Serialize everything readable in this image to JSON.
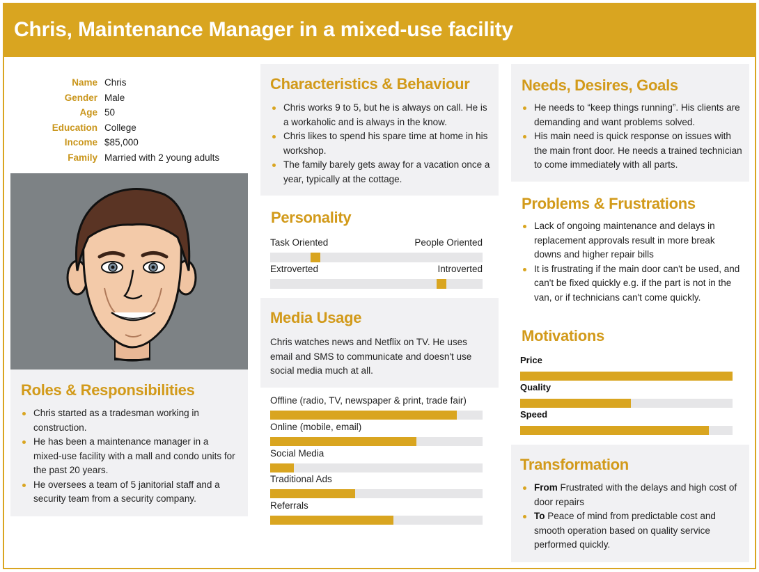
{
  "title": "Chris, Maintenance Manager in a mixed-use facility",
  "profile": [
    {
      "key": "Name",
      "value": "Chris"
    },
    {
      "key": "Gender",
      "value": "Male"
    },
    {
      "key": "Age",
      "value": "50"
    },
    {
      "key": "Education",
      "value": "College"
    },
    {
      "key": "Income",
      "value": "$85,000"
    },
    {
      "key": "Family",
      "value": "Married with 2 young adults"
    }
  ],
  "roles": {
    "title": "Roles & Responsibilities",
    "items": [
      "Chris started as a tradesman working in construction.",
      "He has been a maintenance manager in a mixed-use facility with a mall and condo units for the past 20 years.",
      "He oversees a team of 5 janitorial staff and a security team from a security company."
    ]
  },
  "characteristics": {
    "title": "Characteristics & Behaviour",
    "items": [
      "Chris works 9 to 5, but he is always on call. He is a workaholic and is always in the know.",
      "Chris likes to spend his spare time at home in his workshop.",
      "The family barely gets away for a vacation once a year, typically at the cottage."
    ]
  },
  "personality": {
    "title": "Personality",
    "scales": [
      {
        "left": "Task Oriented",
        "right": "People Oriented",
        "value": 0.2
      },
      {
        "left": "Extroverted",
        "right": "Introverted",
        "value": 0.82
      }
    ]
  },
  "media": {
    "title": "Media Usage",
    "text": "Chris watches news and Netflix on TV. He uses email and SMS to communicate and doesn't use social media much at all.",
    "channels": [
      {
        "label": "Offline (radio, TV, newspaper & print, trade fair)",
        "value": 0.88
      },
      {
        "label": "Online (mobile, email)",
        "value": 0.69
      },
      {
        "label": "Social Media",
        "value": 0.11
      },
      {
        "label": "Traditional Ads",
        "value": 0.4
      },
      {
        "label": "Referrals",
        "value": 0.58
      }
    ]
  },
  "needs": {
    "title": "Needs, Desires, Goals",
    "items": [
      "He needs to “keep things running”. His clients are demanding and want problems solved.",
      "His main need is quick response on issues with the main front door. He needs a trained technician to come immediately with all parts."
    ]
  },
  "problems": {
    "title": "Problems & Frustrations",
    "items": [
      "Lack of ongoing maintenance and delays in replacement approvals result in more break downs and higher repair bills",
      "It is frustrating if the main door can't be used, and can't be fixed quickly e.g. if the part is not in the van, or if technicians can't come quickly."
    ]
  },
  "motivations": {
    "title": "Motivations",
    "items": [
      {
        "label": "Price",
        "value": 1.0
      },
      {
        "label": "Quality",
        "value": 0.52
      },
      {
        "label": "Speed",
        "value": 0.89
      }
    ]
  },
  "transformation": {
    "title": "Transformation",
    "items": [
      {
        "lead": "From",
        "text": " Frustrated with the delays and high cost of door repairs"
      },
      {
        "lead": "To",
        "text": " Peace of mind from predictable cost and smooth operation based on quality service performed quickly."
      }
    ]
  },
  "colors": {
    "accent": "#d9a520",
    "panel": "#f1f1f3",
    "track": "#e6e6e8"
  }
}
